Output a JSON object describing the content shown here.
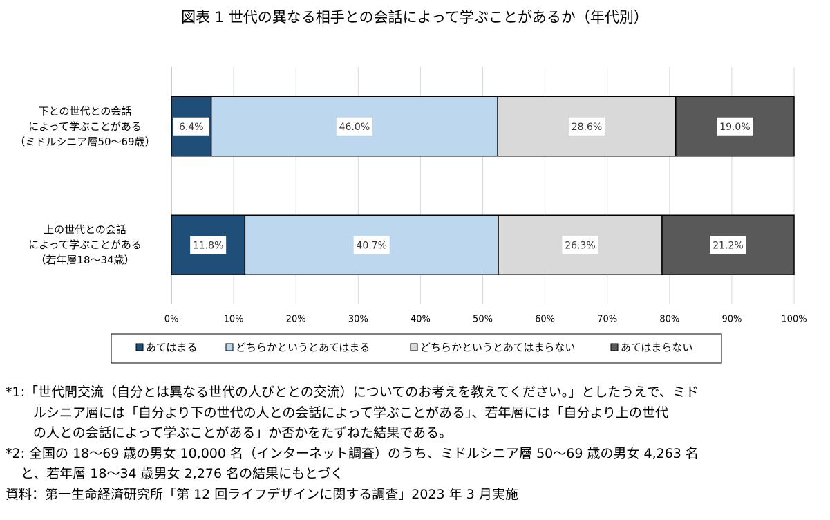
{
  "chart_data": {
    "type": "stacked-barh",
    "title": "図表 1  世代の異なる相手との会話によって学ぶことがあるか（年代別）",
    "categories": [
      "下との世代との会話\nによって学ぶことがある\n（ミドルシニア層50～69歳）",
      "上の世代との会話\nによって学ぶことがある\n（若年層18～34歳）"
    ],
    "series": [
      {
        "name": "あてはまる",
        "color": "#1f4e79",
        "values": [
          6.4,
          11.8
        ],
        "value_labels": [
          "6.4%",
          "11.8%"
        ]
      },
      {
        "name": "どちらかというとあてはまる",
        "color": "#bdd7ee",
        "values": [
          46.0,
          40.7
        ],
        "value_labels": [
          "46.0%",
          "40.7%"
        ]
      },
      {
        "name": "どちらかというとあてはまらない",
        "color": "#d9d9d9",
        "values": [
          28.6,
          26.3
        ],
        "value_labels": [
          "28.6%",
          "26.3%"
        ]
      },
      {
        "name": "あてはまらない",
        "color": "#595959",
        "values": [
          19.0,
          21.2
        ],
        "value_labels": [
          "19.0%",
          "21.2%"
        ]
      }
    ],
    "xlim": [
      0,
      100
    ],
    "xticks": [
      {
        "value": 0,
        "label": "0%"
      },
      {
        "value": 10,
        "label": "10%"
      },
      {
        "value": 20,
        "label": "20%"
      },
      {
        "value": 30,
        "label": "30%"
      },
      {
        "value": 40,
        "label": "40%"
      },
      {
        "value": 50,
        "label": "50%"
      },
      {
        "value": 60,
        "label": "60%"
      },
      {
        "value": 70,
        "label": "70%"
      },
      {
        "value": 80,
        "label": "80%"
      },
      {
        "value": 90,
        "label": "90%"
      },
      {
        "value": 100,
        "label": "100%"
      }
    ],
    "grid": true,
    "legend": "bottom"
  },
  "notes": [
    "*1:「世代間交流（自分とは異なる世代の人びととの交流）についてのお考えを教えてください。」としたうえで、ミド",
    "ルシニア層には「自分より下の世代の人との会話によって学ぶことがある」、若年層には「自分より上の世代",
    "の人との会話によって学ぶことがある」か否かをたずねた結果である。",
    "*2:  全国の 18～69 歳の男女 10,000 名（インターネット調査）のうち、ミドルシニア層 50～69 歳の男女 4,263 名",
    "と、若年層 18～34 歳男女 2,276 名の結果にもとづく",
    "資料：第一生命経済研究所「第 12 回ライフデザインに関する調査」2023 年 3 月実施"
  ]
}
